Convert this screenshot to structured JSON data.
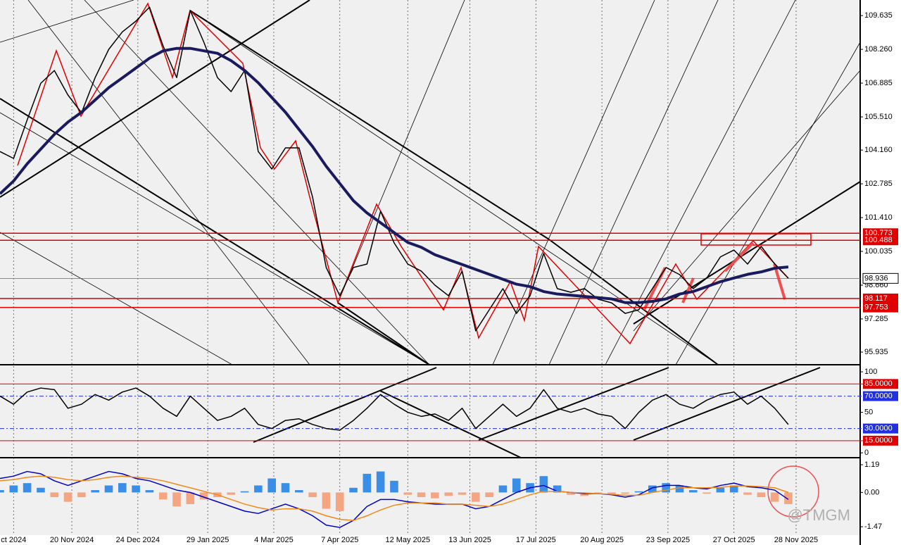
{
  "chart_data": [
    {
      "type": "line",
      "x": [
        "2024-10-14",
        "2024-10-21",
        "2024-10-28",
        "2024-11-04",
        "2024-11-11",
        "2024-11-18",
        "2024-11-25",
        "2024-12-02",
        "2024-12-09",
        "2024-12-16",
        "2024-12-23",
        "2024-12-30",
        "2025-01-06",
        "2025-01-13",
        "2025-01-20",
        "2025-01-27",
        "2025-02-03",
        "2025-02-10",
        "2025-02-17",
        "2025-02-24",
        "2025-03-03",
        "2025-03-10",
        "2025-03-17",
        "2025-03-24",
        "2025-03-31",
        "2025-04-07",
        "2025-04-14",
        "2025-04-21",
        "2025-04-28",
        "2025-05-05",
        "2025-05-12",
        "2025-05-19",
        "2025-05-26",
        "2025-06-02",
        "2025-06-09",
        "2025-06-16",
        "2025-06-23",
        "2025-06-30",
        "2025-07-07",
        "2025-07-14",
        "2025-07-21",
        "2025-07-28",
        "2025-08-04",
        "2025-08-11",
        "2025-08-18",
        "2025-08-25",
        "2025-09-01",
        "2025-09-08",
        "2025-09-15",
        "2025-09-22",
        "2025-09-29",
        "2025-10-06",
        "2025-10-13",
        "2025-10-20",
        "2025-10-27",
        "2025-11-03",
        "2025-11-10",
        "2025-11-17",
        "2025-11-24"
      ],
      "series": [
        {
          "color": "#000000",
          "values": [
            104.1,
            103.82,
            105.39,
            106.88,
            107.4,
            106.4,
            105.68,
            107.11,
            108.26,
            108.97,
            109.41,
            109.98,
            108.4,
            107.11,
            109.84,
            108.55,
            107.11,
            106.54,
            107.4,
            104.1,
            103.39,
            104.25,
            104.25,
            102.24,
            99.38,
            98.23,
            99.38,
            99.52,
            101.67,
            100.38,
            99.52,
            99.23,
            98.66,
            98.23,
            99.23,
            96.8,
            97.66,
            98.52,
            97.51,
            98.23,
            99.95,
            98.52,
            98.37,
            98.52,
            98.09,
            97.94,
            97.51,
            97.66,
            98.52,
            99.38,
            99.09,
            98.52,
            98.95,
            99.81,
            100.09,
            99.52,
            100.24,
            99.52,
            98.94
          ]
        },
        {
          "color": "#1a1a5e",
          "values": [
            102.38,
            102.9,
            103.6,
            104.2,
            104.8,
            105.3,
            105.7,
            106.2,
            106.7,
            107.1,
            107.5,
            107.9,
            108.2,
            108.3,
            108.3,
            108.2,
            108.1,
            107.8,
            107.4,
            106.9,
            106.3,
            105.7,
            105.0,
            104.3,
            103.5,
            102.8,
            102.1,
            101.6,
            101.2,
            100.8,
            100.4,
            100.2,
            99.9,
            99.7,
            99.5,
            99.3,
            99.1,
            98.9,
            98.7,
            98.6,
            98.4,
            98.3,
            98.25,
            98.2,
            98.15,
            98.1,
            97.95,
            97.95,
            98.0,
            98.1,
            98.3,
            98.4,
            98.6,
            98.8,
            98.95,
            99.1,
            99.2,
            99.35,
            99.4
          ]
        }
      ],
      "xlim": [
        "2024-10-14",
        "2025-12-31"
      ],
      "xticks": [
        {
          "value": "2024-10-21",
          "label": "ct 2024"
        },
        {
          "value": "2024-11-20",
          "label": "20 Nov 2024"
        },
        {
          "value": "2024-12-24",
          "label": "24 Dec 2024"
        },
        {
          "value": "2025-01-29",
          "label": "29 Jan 2025"
        },
        {
          "value": "2025-03-04",
          "label": "4 Mar 2025"
        },
        {
          "value": "2025-04-07",
          "label": "7 Apr 2025"
        },
        {
          "value": "2025-05-12",
          "label": "12 May 2025"
        },
        {
          "value": "2025-06-13",
          "label": "13 Jun 2025"
        },
        {
          "value": "2025-07-17",
          "label": "17 Jul 2025"
        },
        {
          "value": "2025-08-20",
          "label": "20 Aug 2025"
        },
        {
          "value": "2025-09-23",
          "label": "23 Sep 2025"
        },
        {
          "value": "2025-10-27",
          "label": "27 Oct 2025"
        },
        {
          "value": "2025-11-28",
          "label": "28 Nov 2025"
        }
      ],
      "ylim": [
        95.42,
        110.27
      ],
      "yticks": [
        109.635,
        {
          "value": 108.26,
          "label": "108.260"
        },
        106.885,
        {
          "value": 105.51,
          "label": "105.510"
        },
        {
          "value": 104.16,
          "label": "104.160"
        },
        102.785,
        {
          "value": 101.41,
          "label": "101.410"
        },
        100.035,
        {
          "value": 98.66,
          "label": "98.660"
        },
        97.285,
        95.935
      ],
      "levels": [
        {
          "value": 100.773,
          "color": "#e00000"
        },
        {
          "value": 100.488,
          "color": "#e00000"
        },
        {
          "value": 98.936,
          "color": "#4060ff",
          "current": true
        },
        {
          "value": 98.117,
          "color": "#e00000"
        },
        {
          "value": 97.753,
          "color": "#e00000"
        }
      ],
      "grid": true
    },
    {
      "type": "line",
      "series": [
        {
          "color": "#000000",
          "values": [
            70,
            60,
            75,
            80,
            78,
            55,
            60,
            72,
            65,
            75,
            80,
            70,
            55,
            45,
            70,
            55,
            40,
            45,
            55,
            35,
            30,
            40,
            42,
            35,
            30,
            28,
            40,
            55,
            72,
            60,
            50,
            45,
            48,
            40,
            55,
            30,
            45,
            60,
            45,
            55,
            78,
            55,
            50,
            55,
            48,
            45,
            30,
            50,
            65,
            72,
            60,
            55,
            65,
            72,
            75,
            60,
            70,
            55,
            35
          ]
        }
      ],
      "ylim": [
        -6,
        107
      ],
      "yticks": [
        100,
        {
          "value": 85,
          "label": "85.0000",
          "color": "#e00000"
        },
        {
          "value": 70,
          "label": "70.0000",
          "color": "#2030e0"
        },
        50,
        {
          "value": 30,
          "label": "30.0000",
          "color": "#2030e0"
        },
        {
          "value": 15,
          "label": "15.0000",
          "color": "#e00000"
        },
        0
      ]
    },
    {
      "type": "bar",
      "values": [
        0.1,
        0.3,
        0.4,
        0.2,
        -0.2,
        -0.4,
        -0.2,
        0.1,
        0.3,
        0.4,
        0.3,
        0.1,
        -0.3,
        -0.6,
        -0.5,
        -0.3,
        -0.2,
        -0.1,
        0.05,
        0.3,
        0.6,
        0.4,
        0.1,
        -0.2,
        -0.7,
        -0.8,
        0.2,
        0.8,
        0.9,
        0.5,
        -0.1,
        -0.2,
        -0.25,
        -0.15,
        -0.1,
        -0.4,
        -0.2,
        0.3,
        0.6,
        0.4,
        0.7,
        0.3,
        -0.1,
        -0.15,
        -0.05,
        -0.1,
        -0.05,
        0.05,
        0.3,
        0.4,
        0.3,
        0.1,
        -0.05,
        0.2,
        0.3,
        -0.1,
        -0.2,
        -0.4,
        -0.5
      ],
      "up_color": "#3a8ee6",
      "down_color": "#f4a582",
      "series": [
        {
          "color": "#0000c0",
          "values": [
            0.6,
            0.7,
            0.9,
            0.8,
            0.5,
            0.3,
            0.5,
            0.7,
            0.9,
            0.8,
            0.6,
            0.5,
            0.3,
            0.1,
            0.0,
            -0.2,
            -0.4,
            -0.6,
            -0.8,
            -0.9,
            -0.7,
            -0.5,
            -0.7,
            -1.0,
            -1.4,
            -1.5,
            -1.2,
            -0.6,
            -0.3,
            -0.3,
            -0.4,
            -0.45,
            -0.5,
            -0.5,
            -0.5,
            -0.7,
            -0.6,
            -0.3,
            0.0,
            0.2,
            0.3,
            0.05,
            0.0,
            -0.05,
            -0.05,
            -0.1,
            -0.2,
            -0.1,
            0.2,
            0.3,
            0.3,
            0.2,
            0.15,
            0.3,
            0.4,
            0.25,
            0.2,
            0.1,
            -0.3
          ]
        },
        {
          "color": "#f08a1c",
          "values": [
            0.5,
            0.55,
            0.65,
            0.7,
            0.65,
            0.55,
            0.5,
            0.55,
            0.65,
            0.7,
            0.65,
            0.6,
            0.5,
            0.35,
            0.2,
            0.05,
            -0.1,
            -0.3,
            -0.5,
            -0.65,
            -0.75,
            -0.7,
            -0.7,
            -0.8,
            -1.0,
            -1.15,
            -1.2,
            -1.0,
            -0.75,
            -0.55,
            -0.45,
            -0.45,
            -0.45,
            -0.5,
            -0.5,
            -0.55,
            -0.6,
            -0.5,
            -0.3,
            -0.1,
            0.05,
            0.05,
            0.0,
            -0.02,
            -0.05,
            -0.08,
            -0.12,
            -0.12,
            0.0,
            0.1,
            0.2,
            0.2,
            0.2,
            0.22,
            0.28,
            0.28,
            0.25,
            0.2,
            0.0
          ]
        }
      ],
      "ylim": [
        -1.83,
        1.43
      ],
      "yticks": [
        1.19,
        {
          "value": 0,
          "label": "0.00"
        },
        -1.47
      ]
    }
  ],
  "watermark": "@TMGM"
}
